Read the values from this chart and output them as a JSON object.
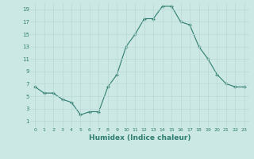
{
  "x": [
    0,
    1,
    2,
    3,
    4,
    5,
    6,
    7,
    8,
    9,
    10,
    11,
    12,
    13,
    14,
    15,
    16,
    17,
    18,
    19,
    20,
    21,
    22,
    23
  ],
  "y": [
    6.5,
    5.5,
    5.5,
    4.5,
    4.0,
    2.0,
    2.5,
    2.5,
    6.5,
    8.5,
    13.0,
    15.0,
    17.5,
    17.5,
    19.5,
    19.5,
    17.0,
    16.5,
    13.0,
    11.0,
    8.5,
    7.0,
    6.5,
    6.5
  ],
  "xlim": [
    -0.5,
    23.5
  ],
  "ylim": [
    0,
    20
  ],
  "xticks": [
    0,
    1,
    2,
    3,
    4,
    5,
    6,
    7,
    8,
    9,
    10,
    11,
    12,
    13,
    14,
    15,
    16,
    17,
    18,
    19,
    20,
    21,
    22,
    23
  ],
  "yticks": [
    1,
    3,
    5,
    7,
    9,
    11,
    13,
    15,
    17,
    19
  ],
  "xlabel": "Humidex (Indice chaleur)",
  "line_color": "#2e7d70",
  "bg_color": "#cce8e4",
  "grid_color": "#b8d8d4",
  "title": ""
}
